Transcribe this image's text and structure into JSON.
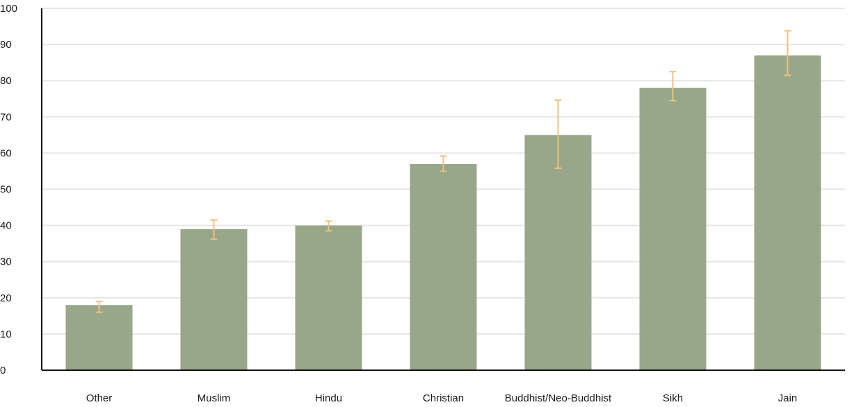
{
  "chart_data": {
    "type": "bar",
    "title": "",
    "xlabel": "",
    "ylabel": "",
    "ylim": [
      0,
      100
    ],
    "yticks": [
      0,
      10,
      20,
      30,
      40,
      50,
      60,
      70,
      80,
      90,
      100
    ],
    "grid": true,
    "legend": "none",
    "categories": [
      "Other",
      "Muslim",
      "Hindu",
      "Christian",
      "Buddhist/Neo-Buddhist",
      "Sikh",
      "Jain"
    ],
    "series": [
      {
        "values": [
          18,
          39,
          40,
          57,
          65,
          78,
          87
        ],
        "error_low": [
          16,
          36.2,
          38.5,
          55,
          55.8,
          74.5,
          81.5
        ],
        "error_high": [
          19,
          41.5,
          41.2,
          59.2,
          74.6,
          82.5,
          93.8
        ]
      }
    ],
    "colors": {
      "bar": "#98a78a",
      "error_bar": "#f0c27b",
      "grid": "#e6e6e6",
      "axis": "#111111"
    }
  }
}
